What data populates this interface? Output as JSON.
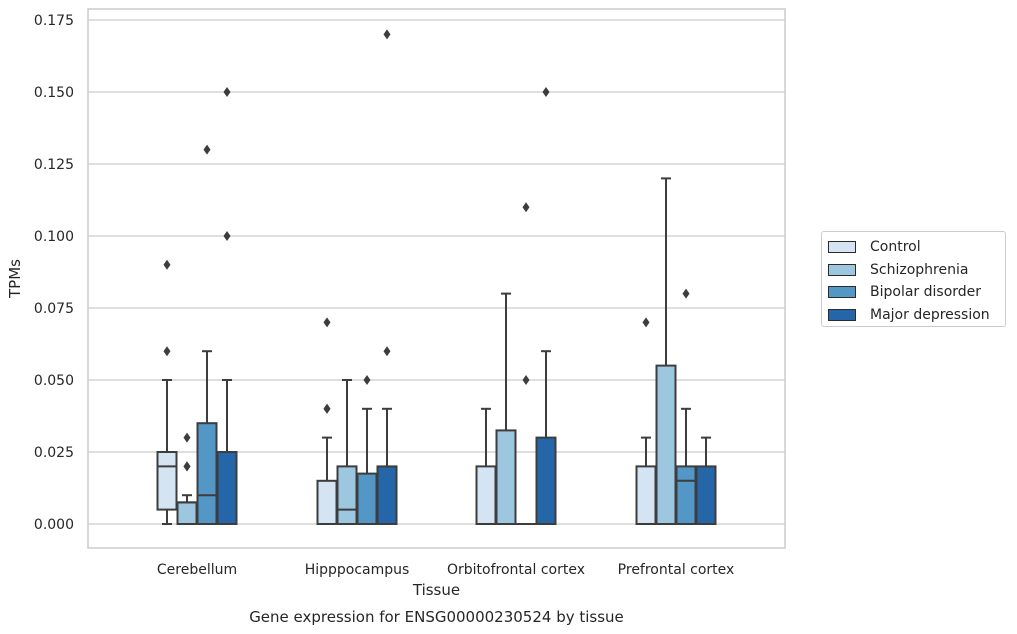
{
  "chart_data": {
    "type": "box",
    "title": "",
    "caption": "Gene expression for ENSG00000230524 by tissue",
    "xlabel": "Tissue",
    "ylabel": "TPMs",
    "ylim": [
      -0.0085,
      0.1795
    ],
    "yticks": [
      "0.000",
      "0.025",
      "0.050",
      "0.075",
      "0.100",
      "0.125",
      "0.150",
      "0.175"
    ],
    "ytick_values": [
      0,
      0.025,
      0.05,
      0.075,
      0.1,
      0.125,
      0.15,
      0.175
    ],
    "grid": "horizontal",
    "legend_position": "right",
    "categories": [
      "Cerebellum",
      "Hipppocampus",
      "Orbitofrontal cortex",
      "Prefrontal cortex"
    ],
    "series": [
      {
        "name": "Control",
        "color": "#d4e4f2",
        "boxes": [
          {
            "q1": 0.005,
            "median": 0.02,
            "q3": 0.025,
            "whislo": 0,
            "whishi": 0.05,
            "fliers": [
              0.06,
              0.09
            ]
          },
          {
            "q1": 0,
            "median": 0,
            "q3": 0.015,
            "whislo": 0,
            "whishi": 0.03,
            "fliers": [
              0.04,
              0.04,
              0.07
            ]
          },
          {
            "q1": 0,
            "median": 0,
            "q3": 0.02,
            "whislo": 0,
            "whishi": 0.04,
            "fliers": []
          },
          {
            "q1": 0,
            "median": 0,
            "q3": 0.02,
            "whislo": 0,
            "whishi": 0.03,
            "fliers": [
              0.07
            ]
          }
        ]
      },
      {
        "name": "Schizophrenia",
        "color": "#9dc6df",
        "boxes": [
          {
            "q1": 0,
            "median": 0.0075,
            "q3": 0.0075,
            "whislo": 0,
            "whishi": 0.01,
            "fliers": [
              0.02,
              0.02,
              0.03
            ]
          },
          {
            "q1": 0,
            "median": 0.005,
            "q3": 0.02,
            "whislo": 0,
            "whishi": 0.05,
            "fliers": []
          },
          {
            "q1": 0,
            "median": 0,
            "q3": 0.0325,
            "whislo": 0,
            "whishi": 0.08,
            "fliers": []
          },
          {
            "q1": 0,
            "median": 0,
            "q3": 0.055,
            "whislo": 0,
            "whishi": 0.12,
            "fliers": []
          }
        ]
      },
      {
        "name": "Bipolar disorder",
        "color": "#5297c5",
        "boxes": [
          {
            "q1": 0,
            "median": 0.01,
            "q3": 0.035,
            "whislo": 0,
            "whishi": 0.06,
            "fliers": [
              0.13
            ]
          },
          {
            "q1": 0,
            "median": 0,
            "q3": 0.0175,
            "whislo": 0,
            "whishi": 0.04,
            "fliers": [
              0.05
            ]
          },
          {
            "q1": 0,
            "median": 0,
            "q3": 0,
            "whislo": 0,
            "whishi": 0,
            "fliers": [
              0.05,
              0.11
            ]
          },
          {
            "q1": 0,
            "median": 0.015,
            "q3": 0.02,
            "whislo": 0,
            "whishi": 0.04,
            "fliers": [
              0.08
            ]
          }
        ]
      },
      {
        "name": "Major depression",
        "color": "#2466a8",
        "boxes": [
          {
            "q1": 0,
            "median": 0,
            "q3": 0.025,
            "whislo": 0,
            "whishi": 0.05,
            "fliers": [
              0.1,
              0.15
            ]
          },
          {
            "q1": 0,
            "median": 0,
            "q3": 0.02,
            "whislo": 0,
            "whishi": 0.04,
            "fliers": [
              0.06,
              0.17
            ]
          },
          {
            "q1": 0,
            "median": 0,
            "q3": 0.03,
            "whislo": 0,
            "whishi": 0.06,
            "fliers": [
              0.15
            ]
          },
          {
            "q1": 0,
            "median": 0,
            "q3": 0.02,
            "whislo": 0,
            "whishi": 0.03,
            "fliers": []
          }
        ]
      }
    ]
  }
}
